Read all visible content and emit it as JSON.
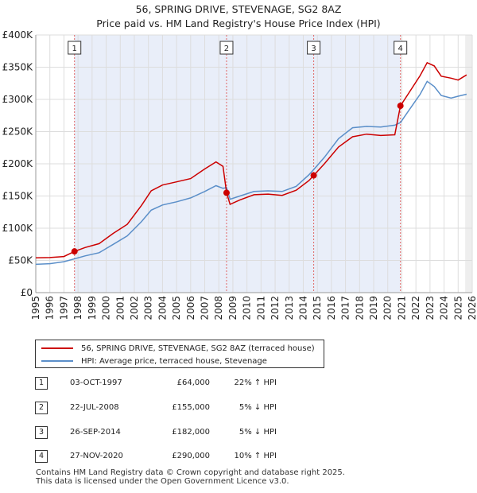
{
  "title": "56, SPRING DRIVE, STEVENAGE, SG2 8AZ",
  "subtitle": "Price paid vs. HM Land Registry's House Price Index (HPI)",
  "chart_data": {
    "type": "line",
    "xlim": [
      1995,
      2026
    ],
    "ylim": [
      0,
      400000
    ],
    "x_ticks": [
      "1995",
      "1996",
      "1997",
      "1998",
      "1999",
      "2000",
      "2001",
      "2002",
      "2003",
      "2004",
      "2005",
      "2006",
      "2007",
      "2008",
      "2009",
      "2010",
      "2011",
      "2012",
      "2013",
      "2014",
      "2015",
      "2016",
      "2017",
      "2018",
      "2019",
      "2020",
      "2021",
      "2022",
      "2023",
      "2024",
      "2025",
      "2026"
    ],
    "y_ticks": [
      {
        "value": 0,
        "label": "£0"
      },
      {
        "value": 50000,
        "label": "£50K"
      },
      {
        "value": 100000,
        "label": "£100K"
      },
      {
        "value": 150000,
        "label": "£150K"
      },
      {
        "value": 200000,
        "label": "£200K"
      },
      {
        "value": 250000,
        "label": "£250K"
      },
      {
        "value": 300000,
        "label": "£300K"
      },
      {
        "value": 350000,
        "label": "£350K"
      },
      {
        "value": 400000,
        "label": "£400K"
      }
    ],
    "series": [
      {
        "name": "56, SPRING DRIVE, STEVENAGE, SG2 8AZ (terraced house)",
        "color": "#cc0000",
        "points": [
          [
            1995,
            54000
          ],
          [
            1996,
            54500
          ],
          [
            1997,
            56000
          ],
          [
            1997.75,
            64000
          ],
          [
            1998.5,
            70000
          ],
          [
            1999.5,
            76000
          ],
          [
            2000.5,
            92000
          ],
          [
            2001.5,
            106000
          ],
          [
            2002.5,
            135000
          ],
          [
            2003.2,
            158000
          ],
          [
            2004,
            167000
          ],
          [
            2005,
            172000
          ],
          [
            2006,
            177000
          ],
          [
            2007,
            192000
          ],
          [
            2007.8,
            203000
          ],
          [
            2008.3,
            196000
          ],
          [
            2008.55,
            155000
          ],
          [
            2008.8,
            137000
          ],
          [
            2009.5,
            144000
          ],
          [
            2010.5,
            152000
          ],
          [
            2011.5,
            153000
          ],
          [
            2012.5,
            151000
          ],
          [
            2013.5,
            159000
          ],
          [
            2014.4,
            174000
          ],
          [
            2014.74,
            182000
          ],
          [
            2015.5,
            200000
          ],
          [
            2016.5,
            226000
          ],
          [
            2017.5,
            242000
          ],
          [
            2018.5,
            246000
          ],
          [
            2019.5,
            244000
          ],
          [
            2020.5,
            245000
          ],
          [
            2020.9,
            290000
          ],
          [
            2021.5,
            310000
          ],
          [
            2022.3,
            337000
          ],
          [
            2022.8,
            357000
          ],
          [
            2023.3,
            352000
          ],
          [
            2023.8,
            336000
          ],
          [
            2024.5,
            333000
          ],
          [
            2025,
            330000
          ],
          [
            2025.6,
            338000
          ]
        ]
      },
      {
        "name": "HPI: Average price, terraced house, Stevenage",
        "color": "#5b8fc9",
        "points": [
          [
            1995,
            44000
          ],
          [
            1996,
            45000
          ],
          [
            1997,
            48000
          ],
          [
            1997.75,
            52500
          ],
          [
            1998.5,
            57000
          ],
          [
            1999.5,
            62000
          ],
          [
            2000.5,
            75000
          ],
          [
            2001.5,
            88000
          ],
          [
            2002.5,
            110000
          ],
          [
            2003.2,
            128000
          ],
          [
            2004,
            136000
          ],
          [
            2005,
            141000
          ],
          [
            2006,
            147000
          ],
          [
            2007,
            157000
          ],
          [
            2007.8,
            166000
          ],
          [
            2008.3,
            162000
          ],
          [
            2008.55,
            163000
          ],
          [
            2008.8,
            145000
          ],
          [
            2009.5,
            150000
          ],
          [
            2010.5,
            157000
          ],
          [
            2011.5,
            158000
          ],
          [
            2012.5,
            157000
          ],
          [
            2013.5,
            165000
          ],
          [
            2014.4,
            183000
          ],
          [
            2014.74,
            191000
          ],
          [
            2015.5,
            210000
          ],
          [
            2016.5,
            239000
          ],
          [
            2017.5,
            256000
          ],
          [
            2018.5,
            258000
          ],
          [
            2019.5,
            257000
          ],
          [
            2020.5,
            260000
          ],
          [
            2020.9,
            264000
          ],
          [
            2021.5,
            283000
          ],
          [
            2022.3,
            308000
          ],
          [
            2022.8,
            328000
          ],
          [
            2023.3,
            320000
          ],
          [
            2023.8,
            306000
          ],
          [
            2024.5,
            302000
          ],
          [
            2025,
            305000
          ],
          [
            2025.6,
            308000
          ]
        ]
      }
    ],
    "sales": [
      {
        "num": "1",
        "date": "03-OCT-1997",
        "x": 1997.75,
        "price": 64000,
        "price_label": "£64,000",
        "hpi": "22% ↑ HPI"
      },
      {
        "num": "2",
        "date": "22-JUL-2008",
        "x": 2008.55,
        "price": 155000,
        "price_label": "£155,000",
        "hpi": "5% ↓ HPI"
      },
      {
        "num": "3",
        "date": "26-SEP-2014",
        "x": 2014.74,
        "price": 182000,
        "price_label": "£182,000",
        "hpi": "5% ↓ HPI"
      },
      {
        "num": "4",
        "date": "27-NOV-2020",
        "x": 2020.9,
        "price": 290000,
        "price_label": "£290,000",
        "hpi": "10% ↑ HPI"
      }
    ]
  },
  "legend": {
    "property": "56, SPRING DRIVE, STEVENAGE, SG2 8AZ (terraced house)",
    "hpi": "HPI: Average price, terraced house, Stevenage"
  },
  "footer": {
    "line1": "Contains HM Land Registry data © Crown copyright and database right 2025.",
    "line2": "This data is licensed under the Open Government Licence v3.0."
  }
}
